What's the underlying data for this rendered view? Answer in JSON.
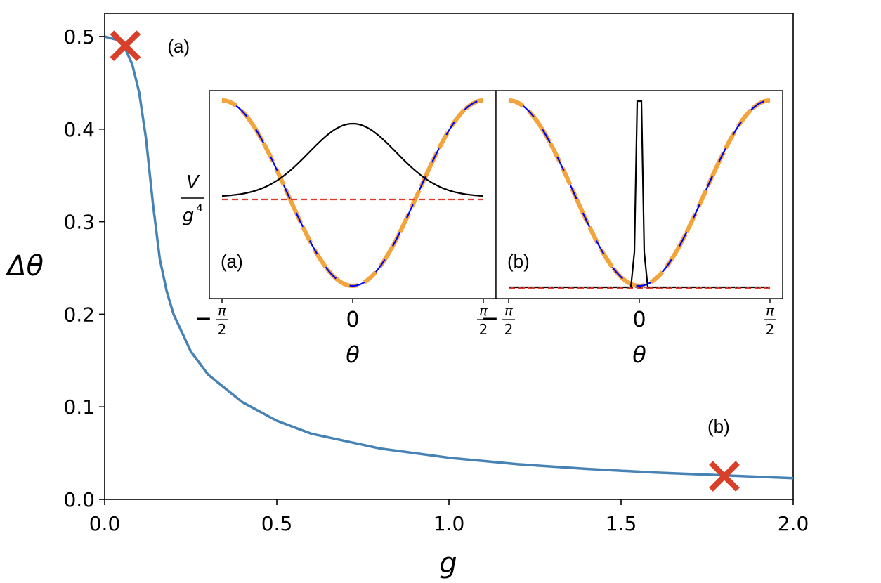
{
  "chart_data": [
    {
      "type": "line",
      "xlabel": "g",
      "ylabel": "Δθ",
      "xlim": [
        0.0,
        2.0
      ],
      "ylim": [
        0.0,
        0.5
      ],
      "xticks": [
        "0.0",
        "0.5",
        "1.0",
        "1.5",
        "2.0"
      ],
      "yticks": [
        "0.0",
        "0.1",
        "0.2",
        "0.3",
        "0.4",
        "0.5"
      ],
      "series": [
        {
          "color": "#4682b4",
          "x": [
            0.0,
            0.05,
            0.08,
            0.1,
            0.12,
            0.14,
            0.16,
            0.18,
            0.2,
            0.25,
            0.3,
            0.4,
            0.5,
            0.6,
            0.8,
            1.0,
            1.2,
            1.4,
            1.6,
            1.8,
            2.0
          ],
          "y": [
            0.5,
            0.495,
            0.47,
            0.44,
            0.39,
            0.32,
            0.26,
            0.225,
            0.2,
            0.16,
            0.135,
            0.105,
            0.085,
            0.071,
            0.055,
            0.045,
            0.038,
            0.033,
            0.029,
            0.026,
            0.023
          ]
        }
      ],
      "markers": [
        {
          "label": "(a)",
          "x": 0.06,
          "y": 0.49,
          "color": "#d9402a"
        },
        {
          "label": "(b)",
          "x": 1.8,
          "y": 0.025,
          "color": "#d9402a"
        }
      ]
    },
    {
      "type": "line",
      "panel_label": "(a)",
      "xlabel": "θ",
      "ylabel_num": "V",
      "ylabel_den": "g",
      "ylabel_den_sup": "4",
      "xlim": [
        -1.5708,
        1.5708
      ],
      "xticks": [
        "−π/2",
        "0",
        "π/2"
      ],
      "series": [
        {
          "color": "#0000ff",
          "style": "solid"
        },
        {
          "color": "#f2a53c",
          "style": "dashed"
        },
        {
          "color": "#000000",
          "style": "solid"
        },
        {
          "color": "#e03a2f",
          "style": "dashed"
        }
      ]
    },
    {
      "type": "line",
      "panel_label": "(b)",
      "xlabel": "θ",
      "xlim": [
        -1.5708,
        1.5708
      ],
      "xticks": [
        "−π/2",
        "0",
        "π/2"
      ],
      "series": [
        {
          "color": "#0000ff",
          "style": "solid"
        },
        {
          "color": "#f2a53c",
          "style": "dashed"
        },
        {
          "color": "#000000",
          "style": "solid"
        },
        {
          "color": "#e03a2f",
          "style": "dashed"
        }
      ]
    }
  ],
  "inset_tick_text": {
    "minus": "−",
    "pi": "π",
    "two": "2",
    "zero": "0"
  }
}
